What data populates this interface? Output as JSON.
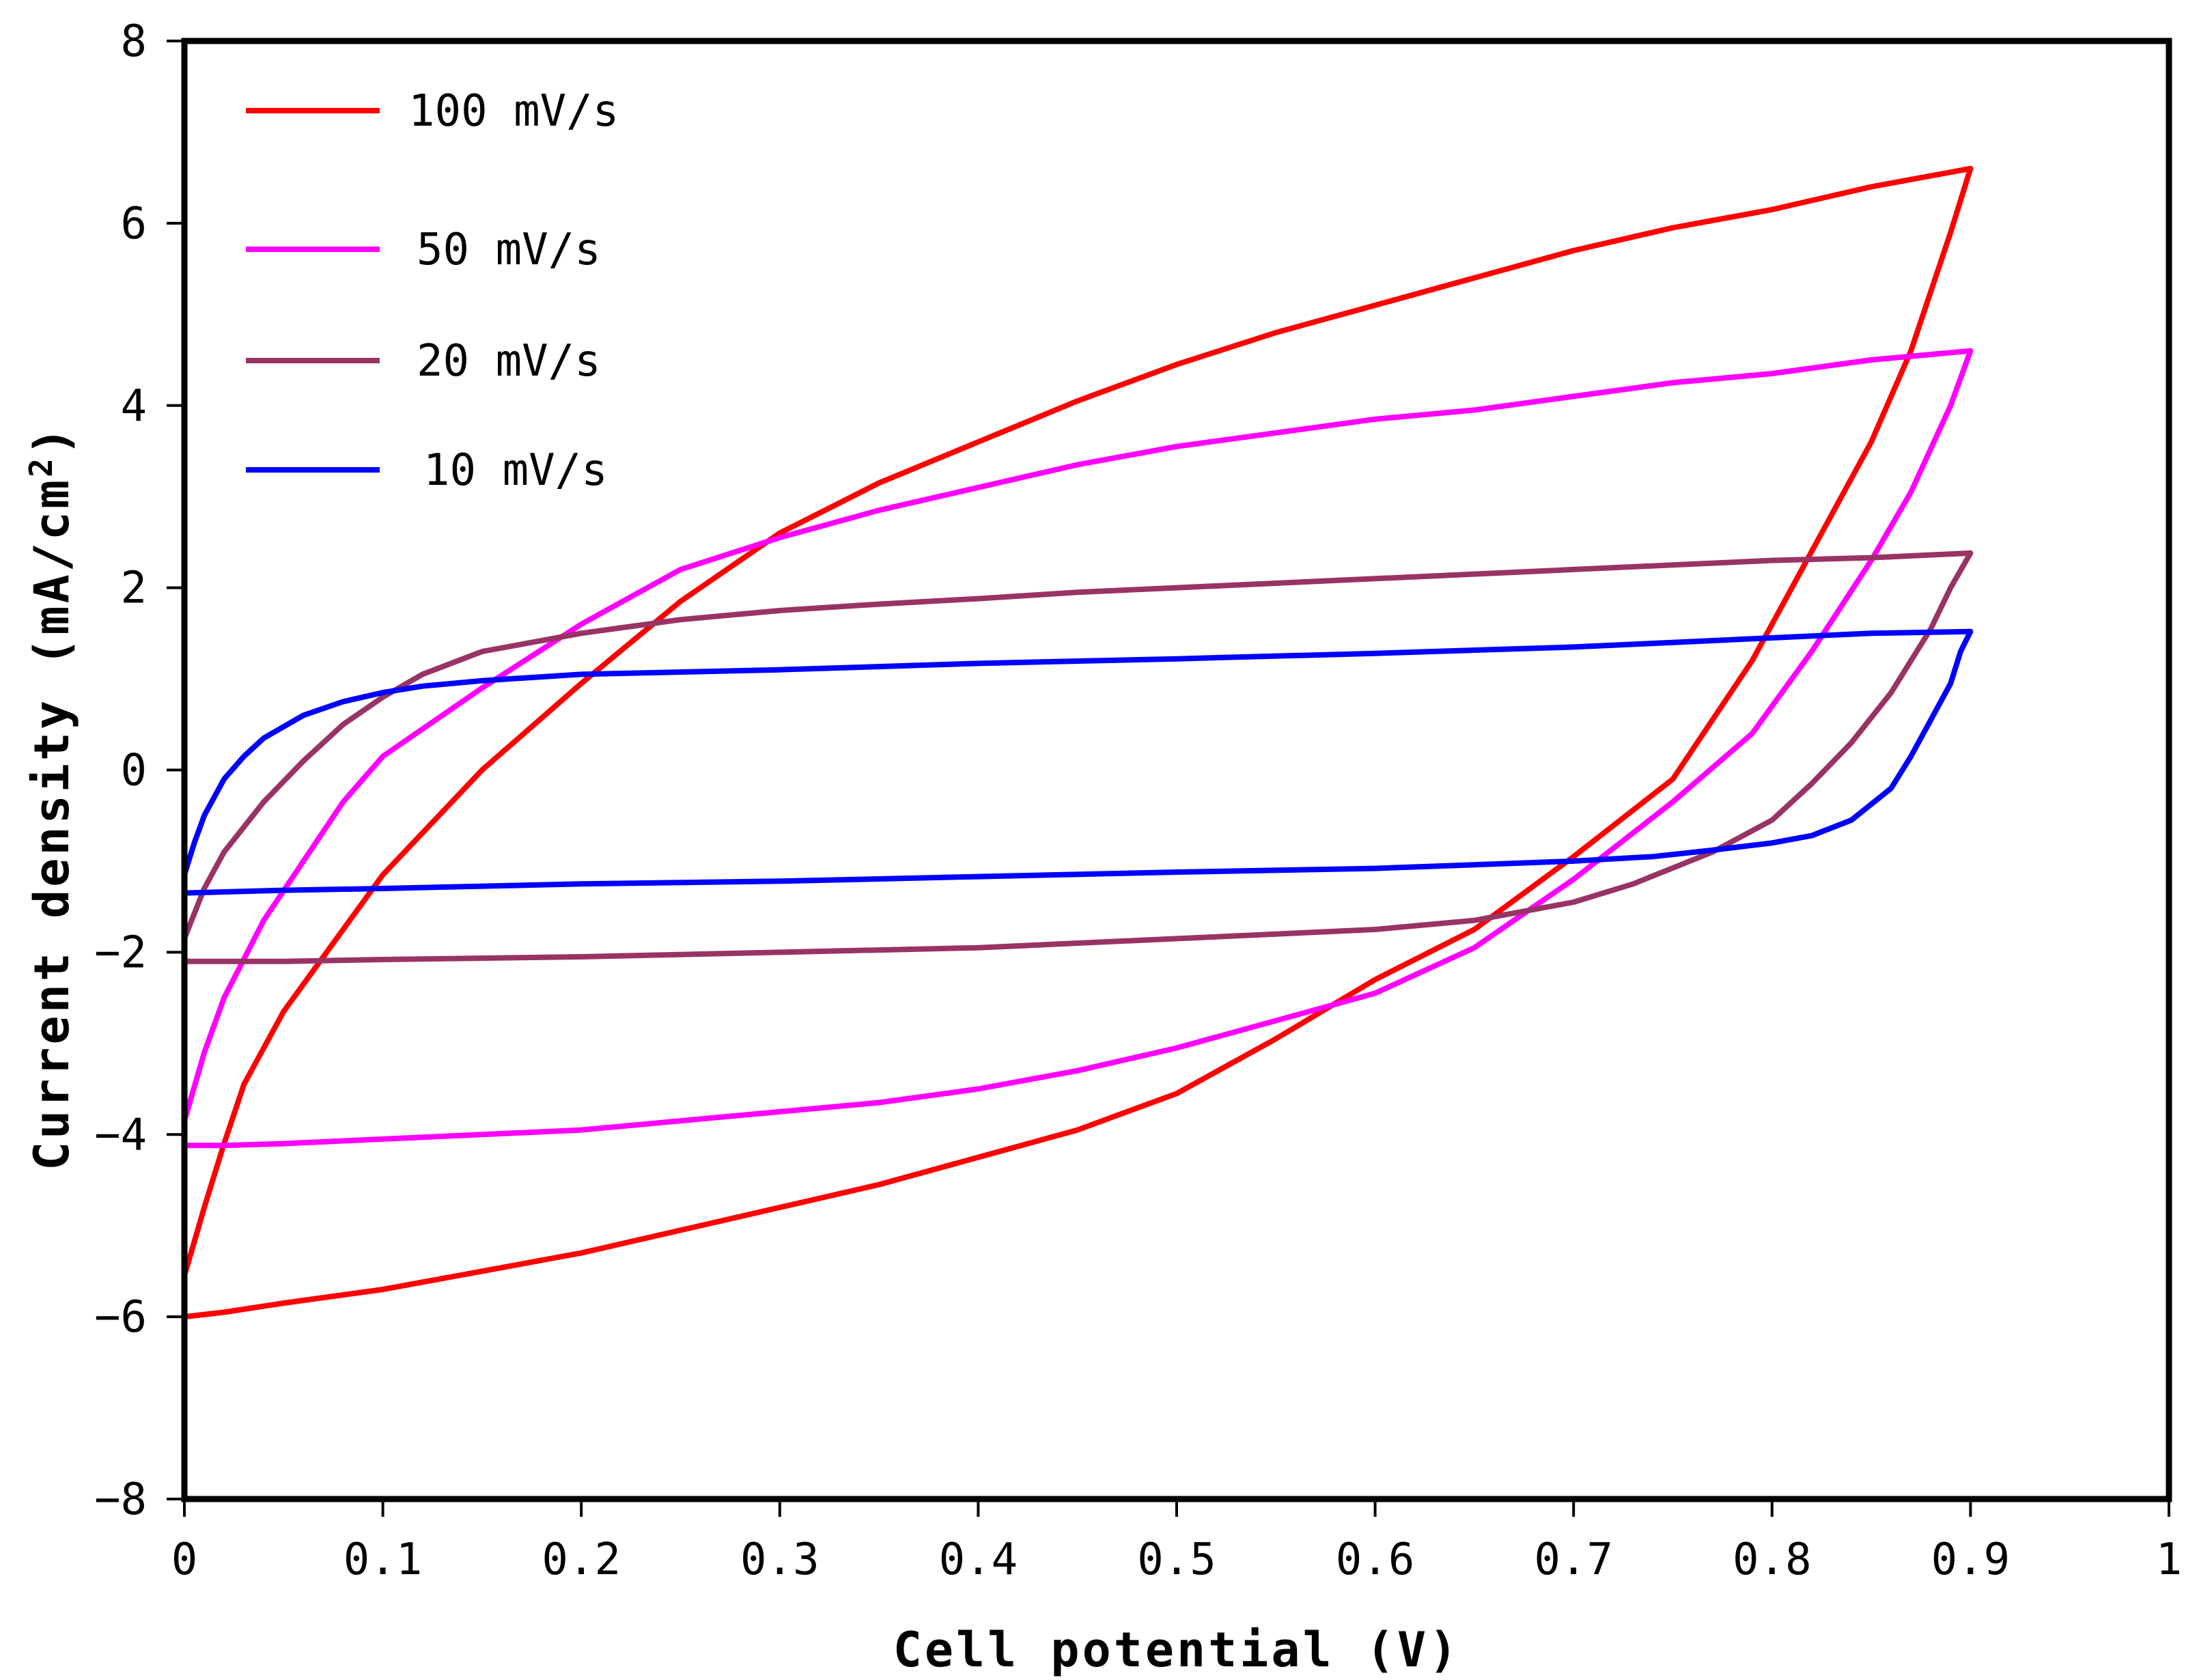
{
  "chart_data": {
    "type": "line",
    "title": "",
    "xlabel": "Cell potential (V)",
    "ylabel_main": "Current density (mA/cm",
    "ylabel_sup": "2",
    "ylabel_close": ")",
    "xlim": [
      0,
      1
    ],
    "ylim": [
      -8,
      8
    ],
    "x_ticks": [
      0,
      0.1,
      0.2,
      0.3,
      0.4,
      0.5,
      0.6,
      0.7,
      0.8,
      0.9,
      1
    ],
    "x_tick_labels": [
      "0",
      "0.1",
      "0.2",
      "0.3",
      "0.4",
      "0.5",
      "0.6",
      "0.7",
      "0.8",
      "0.9",
      "1"
    ],
    "y_ticks": [
      -8,
      -6,
      -4,
      -2,
      0,
      2,
      4,
      6,
      8
    ],
    "y_tick_labels": [
      "−8",
      "−6",
      "−4",
      "−2",
      "0",
      "2",
      "4",
      "6",
      "8"
    ],
    "grid": false,
    "legend_position": "top-left",
    "series": [
      {
        "name": "100 mV/s",
        "color": "#ff0000",
        "x": [
          0.0,
          0.01,
          0.02,
          0.03,
          0.05,
          0.08,
          0.1,
          0.15,
          0.2,
          0.25,
          0.3,
          0.35,
          0.4,
          0.45,
          0.5,
          0.55,
          0.6,
          0.65,
          0.7,
          0.75,
          0.8,
          0.85,
          0.9,
          0.9,
          0.89,
          0.87,
          0.85,
          0.82,
          0.79,
          0.75,
          0.7,
          0.65,
          0.6,
          0.55,
          0.5,
          0.45,
          0.4,
          0.35,
          0.3,
          0.25,
          0.2,
          0.15,
          0.1,
          0.05,
          0.02,
          0.0,
          0.0
        ],
        "y": [
          -5.55,
          -4.8,
          -4.1,
          -3.45,
          -2.65,
          -1.75,
          -1.15,
          0.0,
          0.95,
          1.85,
          2.6,
          3.15,
          3.6,
          4.05,
          4.45,
          4.8,
          5.1,
          5.4,
          5.7,
          5.95,
          6.15,
          6.4,
          6.6,
          6.6,
          5.9,
          4.6,
          3.6,
          2.4,
          1.2,
          -0.1,
          -0.95,
          -1.75,
          -2.3,
          -2.95,
          -3.55,
          -3.95,
          -4.25,
          -4.55,
          -4.8,
          -5.05,
          -5.3,
          -5.5,
          -5.7,
          -5.85,
          -5.95,
          -6.0,
          -5.55
        ]
      },
      {
        "name": "50 mV/s",
        "color": "#ff00ff",
        "x": [
          0.0,
          0.01,
          0.02,
          0.04,
          0.06,
          0.08,
          0.1,
          0.15,
          0.2,
          0.25,
          0.3,
          0.35,
          0.4,
          0.45,
          0.5,
          0.55,
          0.6,
          0.65,
          0.7,
          0.75,
          0.8,
          0.85,
          0.9,
          0.9,
          0.89,
          0.87,
          0.85,
          0.82,
          0.79,
          0.75,
          0.7,
          0.65,
          0.6,
          0.55,
          0.5,
          0.45,
          0.4,
          0.35,
          0.3,
          0.25,
          0.2,
          0.15,
          0.1,
          0.05,
          0.02,
          0.0,
          0.0
        ],
        "y": [
          -3.85,
          -3.1,
          -2.5,
          -1.65,
          -1.0,
          -0.35,
          0.15,
          0.9,
          1.6,
          2.2,
          2.55,
          2.85,
          3.1,
          3.35,
          3.55,
          3.7,
          3.85,
          3.95,
          4.1,
          4.25,
          4.35,
          4.5,
          4.6,
          4.6,
          4.0,
          3.05,
          2.3,
          1.3,
          0.4,
          -0.35,
          -1.2,
          -1.95,
          -2.45,
          -2.75,
          -3.05,
          -3.3,
          -3.5,
          -3.65,
          -3.75,
          -3.85,
          -3.95,
          -4.0,
          -4.05,
          -4.1,
          -4.12,
          -4.12,
          -3.85
        ]
      },
      {
        "name": "20 mV/s",
        "color": "#993366",
        "x": [
          0.0,
          0.01,
          0.02,
          0.04,
          0.06,
          0.08,
          0.1,
          0.12,
          0.15,
          0.2,
          0.25,
          0.3,
          0.35,
          0.4,
          0.45,
          0.5,
          0.55,
          0.6,
          0.65,
          0.7,
          0.75,
          0.8,
          0.85,
          0.9,
          0.9,
          0.89,
          0.88,
          0.86,
          0.84,
          0.82,
          0.8,
          0.77,
          0.73,
          0.7,
          0.65,
          0.6,
          0.5,
          0.4,
          0.3,
          0.2,
          0.1,
          0.05,
          0.02,
          0.0,
          0.0
        ],
        "y": [
          -1.85,
          -1.3,
          -0.9,
          -0.35,
          0.1,
          0.5,
          0.8,
          1.05,
          1.3,
          1.5,
          1.65,
          1.75,
          1.82,
          1.88,
          1.95,
          2.0,
          2.05,
          2.1,
          2.15,
          2.2,
          2.25,
          2.3,
          2.33,
          2.38,
          2.38,
          2.0,
          1.55,
          0.85,
          0.3,
          -0.15,
          -0.55,
          -0.9,
          -1.25,
          -1.45,
          -1.65,
          -1.75,
          -1.85,
          -1.95,
          -2.0,
          -2.05,
          -2.08,
          -2.1,
          -2.1,
          -2.1,
          -1.85
        ]
      },
      {
        "name": "10 mV/s",
        "color": "#0000ff",
        "x": [
          0.0,
          0.005,
          0.01,
          0.02,
          0.03,
          0.04,
          0.06,
          0.08,
          0.1,
          0.12,
          0.15,
          0.2,
          0.3,
          0.4,
          0.5,
          0.6,
          0.7,
          0.75,
          0.8,
          0.85,
          0.9,
          0.9,
          0.895,
          0.89,
          0.88,
          0.87,
          0.86,
          0.84,
          0.82,
          0.8,
          0.77,
          0.74,
          0.7,
          0.6,
          0.5,
          0.4,
          0.3,
          0.2,
          0.1,
          0.05,
          0.0,
          0.0
        ],
        "y": [
          -1.15,
          -0.8,
          -0.5,
          -0.1,
          0.15,
          0.35,
          0.6,
          0.75,
          0.85,
          0.92,
          0.98,
          1.05,
          1.1,
          1.17,
          1.22,
          1.28,
          1.35,
          1.4,
          1.45,
          1.5,
          1.52,
          1.52,
          1.3,
          0.95,
          0.55,
          0.15,
          -0.2,
          -0.55,
          -0.72,
          -0.8,
          -0.88,
          -0.95,
          -1.0,
          -1.08,
          -1.12,
          -1.17,
          -1.22,
          -1.25,
          -1.3,
          -1.32,
          -1.35,
          -1.15
        ]
      }
    ]
  }
}
